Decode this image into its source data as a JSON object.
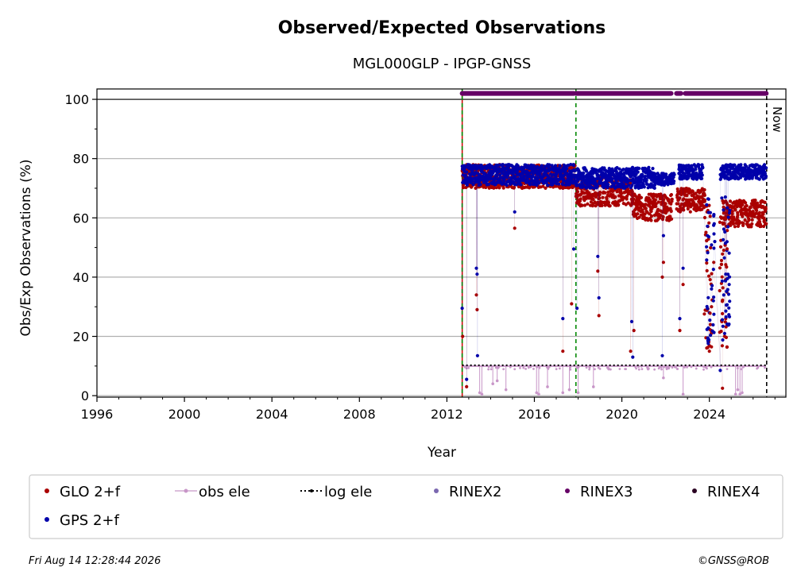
{
  "chart_data": {
    "type": "scatter",
    "title": "Observed/Expected Observations",
    "subtitle": "MGL000GLP - IPGP-GNSS",
    "xlabel": "Year",
    "ylabel": "Obs/Exp Observations (%)",
    "xlim": [
      1996,
      2027.5
    ],
    "ylim": [
      -0.5,
      103.5
    ],
    "xticks": [
      "1996",
      "2000",
      "2004",
      "2008",
      "2012",
      "2016",
      "2020",
      "2024"
    ],
    "yticks": [
      "0",
      "20",
      "40",
      "60",
      "80",
      "100"
    ],
    "grid": "horizontal",
    "now_label": "Now",
    "now_year": 2026.62,
    "vlines_green": [
      2012.7,
      2017.9
    ],
    "vline_red": 2012.7,
    "legend_position": "bottom",
    "legend": [
      {
        "label": "GLO 2+f",
        "color": "#aa0000",
        "marker": "dot"
      },
      {
        "label": "obs ele",
        "color": "#c896c8",
        "marker": "line-dot"
      },
      {
        "label": "log ele",
        "color": "#000000",
        "marker": "dotted-line"
      },
      {
        "label": "RINEX2",
        "color": "#7b68b0",
        "marker": "dot"
      },
      {
        "label": "RINEX3",
        "color": "#660066",
        "marker": "dot"
      },
      {
        "label": "RINEX4",
        "color": "#2a0022",
        "marker": "dot"
      },
      {
        "label": "GPS 2+f",
        "color": "#0000aa",
        "marker": "dot"
      }
    ],
    "series": [
      {
        "name": "GLO 2+f",
        "color": "#aa0000",
        "segments": [
          {
            "from": 2012.7,
            "to": 2017.9,
            "low": 70,
            "high": 78
          },
          {
            "from": 2017.9,
            "to": 2020.5,
            "low": 64,
            "high": 74
          },
          {
            "from": 2020.5,
            "to": 2022.3,
            "low": 59,
            "high": 68
          },
          {
            "from": 2022.5,
            "to": 2023.8,
            "low": 62,
            "high": 70
          },
          {
            "from": 2024.6,
            "to": 2026.6,
            "low": 57,
            "high": 66
          }
        ],
        "outliers": [
          [
            2012.72,
            20
          ],
          [
            2012.9,
            3
          ],
          [
            2013.35,
            34
          ],
          [
            2013.38,
            29
          ],
          [
            2015.1,
            56.5
          ],
          [
            2017.3,
            15
          ],
          [
            2017.7,
            31
          ],
          [
            2018.9,
            42
          ],
          [
            2018.95,
            27
          ],
          [
            2020.4,
            15
          ],
          [
            2020.55,
            22
          ],
          [
            2021.85,
            40
          ],
          [
            2021.9,
            45
          ],
          [
            2022.65,
            22
          ],
          [
            2022.8,
            37.5
          ],
          [
            2024.0,
            15
          ],
          [
            2024.05,
            24
          ],
          [
            2024.1,
            30
          ],
          [
            2024.2,
            45
          ],
          [
            2024.6,
            2.5
          ],
          [
            2024.7,
            20
          ],
          [
            2024.75,
            26
          ],
          [
            2024.8,
            35
          ]
        ]
      },
      {
        "name": "GPS 2+f",
        "color": "#0000aa",
        "segments": [
          {
            "from": 2012.7,
            "to": 2017.9,
            "low": 71,
            "high": 78
          },
          {
            "from": 2017.9,
            "to": 2021.5,
            "low": 70,
            "high": 77
          },
          {
            "from": 2021.5,
            "to": 2022.4,
            "low": 71,
            "high": 75
          },
          {
            "from": 2022.6,
            "to": 2023.7,
            "low": 73,
            "high": 78
          },
          {
            "from": 2024.5,
            "to": 2026.6,
            "low": 73,
            "high": 78
          }
        ],
        "outliers": [
          [
            2012.7,
            29.5
          ],
          [
            2012.9,
            5.5
          ],
          [
            2013.35,
            43
          ],
          [
            2013.38,
            41
          ],
          [
            2013.4,
            13.5
          ],
          [
            2015.1,
            62
          ],
          [
            2017.3,
            26
          ],
          [
            2017.8,
            49.5
          ],
          [
            2017.95,
            29.5
          ],
          [
            2018.9,
            47
          ],
          [
            2018.95,
            33
          ],
          [
            2020.45,
            25
          ],
          [
            2020.5,
            13
          ],
          [
            2021.85,
            13.5
          ],
          [
            2021.9,
            54
          ],
          [
            2022.65,
            26
          ],
          [
            2022.8,
            43
          ],
          [
            2023.95,
            18
          ],
          [
            2024.0,
            28
          ],
          [
            2024.1,
            36
          ],
          [
            2024.25,
            52
          ],
          [
            2024.5,
            8.5
          ],
          [
            2024.7,
            21
          ],
          [
            2024.75,
            41
          ],
          [
            2024.8,
            49
          ],
          [
            2024.85,
            57
          ]
        ]
      },
      {
        "name": "obs ele",
        "color": "#c896c8",
        "base": 10,
        "from": 2012.7,
        "to": 2026.6,
        "dips": [
          [
            2013.5,
            1
          ],
          [
            2013.6,
            0.5
          ],
          [
            2014.1,
            4
          ],
          [
            2014.3,
            5
          ],
          [
            2014.7,
            2
          ],
          [
            2016.1,
            1
          ],
          [
            2016.2,
            0.5
          ],
          [
            2016.6,
            3
          ],
          [
            2017.3,
            1
          ],
          [
            2017.6,
            2
          ],
          [
            2018.0,
            1
          ],
          [
            2018.7,
            3
          ],
          [
            2019.4,
            9
          ],
          [
            2021.2,
            9
          ],
          [
            2021.9,
            6
          ],
          [
            2022.8,
            0.5
          ],
          [
            2025.2,
            0.5
          ],
          [
            2025.3,
            2
          ],
          [
            2025.4,
            0.5
          ],
          [
            2025.5,
            1
          ]
        ]
      },
      {
        "name": "log ele",
        "color": "#000000",
        "value": 10,
        "from": 2012.7,
        "to": 2026.6
      },
      {
        "name": "RINEX3",
        "color": "#660066",
        "value": 102,
        "ranges": [
          [
            2012.7,
            2017.8
          ],
          [
            2017.9,
            2022.25
          ],
          [
            2022.5,
            2022.7
          ],
          [
            2022.9,
            2026.6
          ]
        ]
      }
    ]
  },
  "footer": {
    "timestamp": "Fri Aug 14 12:28:44 2026",
    "credit": "©GNSS@ROB"
  }
}
